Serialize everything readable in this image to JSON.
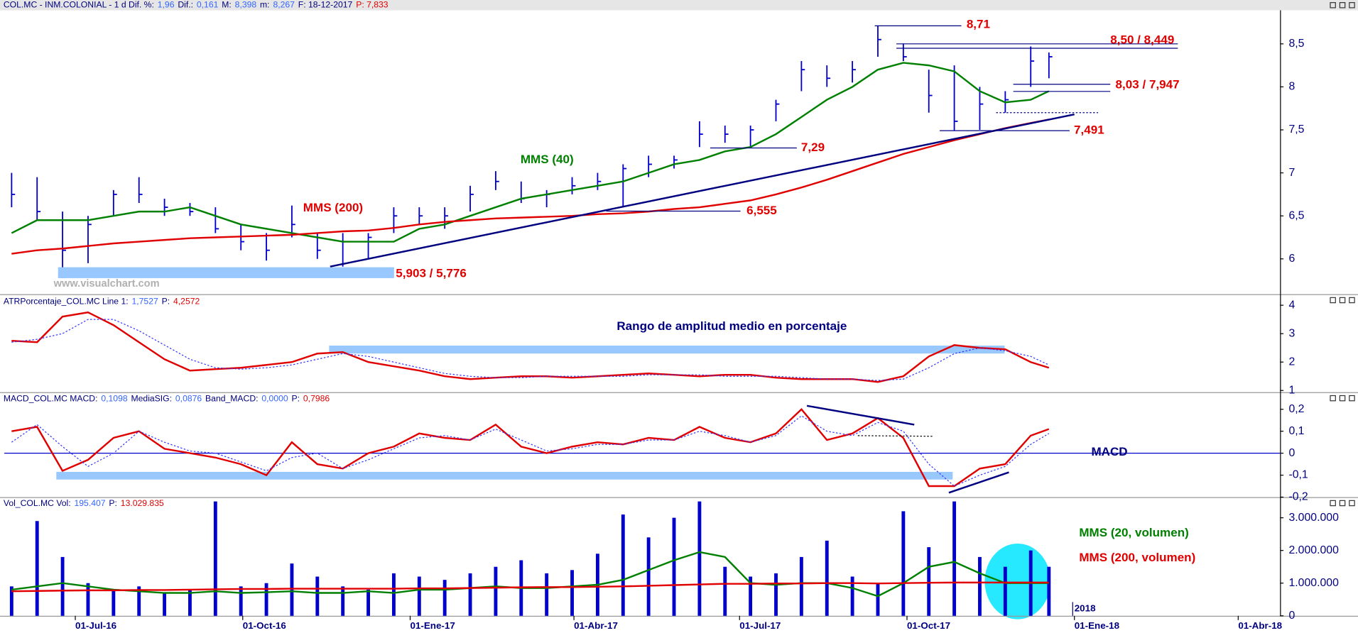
{
  "chart_data": [
    {
      "type": "ohlc",
      "header": [
        {
          "text": "COL.MC - INM.COLONIAL -  1 d  Dif. %:",
          "color": "#000080"
        },
        {
          "text": "1,96",
          "color": "#3366ff"
        },
        {
          "text": "Dif.:",
          "color": "#000080"
        },
        {
          "text": "0,161",
          "color": "#3366ff"
        },
        {
          "text": "M:",
          "color": "#000080"
        },
        {
          "text": "8,398",
          "color": "#3366ff"
        },
        {
          "text": "m:",
          "color": "#000080"
        },
        {
          "text": "8,267",
          "color": "#3366ff"
        },
        {
          "text": "F: 18-12-2017",
          "color": "#000080"
        },
        {
          "text": "P: 7,833",
          "color": "#e00000"
        }
      ],
      "x": [
        "2016-05-27",
        "2016-06-10",
        "2016-06-24",
        "2016-07-08",
        "2016-07-22",
        "2016-08-05",
        "2016-08-19",
        "2016-09-02",
        "2016-09-16",
        "2016-09-30",
        "2016-10-14",
        "2016-10-28",
        "2016-11-11",
        "2016-11-25",
        "2016-12-09",
        "2016-12-23",
        "2017-01-06",
        "2017-01-20",
        "2017-02-03",
        "2017-02-17",
        "2017-03-03",
        "2017-03-17",
        "2017-03-31",
        "2017-04-14",
        "2017-04-28",
        "2017-05-12",
        "2017-05-26",
        "2017-06-09",
        "2017-06-23",
        "2017-07-07",
        "2017-07-21",
        "2017-08-04",
        "2017-08-18",
        "2017-09-01",
        "2017-09-15",
        "2017-09-29",
        "2017-10-13",
        "2017-10-27",
        "2017-11-10",
        "2017-11-24",
        "2017-12-08",
        "2017-12-18"
      ],
      "high": [
        7.0,
        6.95,
        6.55,
        6.5,
        6.8,
        6.95,
        6.7,
        6.65,
        6.6,
        6.4,
        6.3,
        6.62,
        6.3,
        6.3,
        6.3,
        6.6,
        6.6,
        6.6,
        6.85,
        7.02,
        6.9,
        6.8,
        6.95,
        7.0,
        7.1,
        7.2,
        7.2,
        7.6,
        7.55,
        7.55,
        7.85,
        8.3,
        8.25,
        8.3,
        8.71,
        8.5,
        8.2,
        8.25,
        8.0,
        7.95,
        8.47,
        8.4
      ],
      "low": [
        6.6,
        6.45,
        5.776,
        5.95,
        6.5,
        6.65,
        6.5,
        6.5,
        6.3,
        6.1,
        5.98,
        6.25,
        6.0,
        5.91,
        6.0,
        6.3,
        6.4,
        6.35,
        6.55,
        6.8,
        6.65,
        6.6,
        6.75,
        6.8,
        6.6,
        6.95,
        7.05,
        7.3,
        7.35,
        7.29,
        7.6,
        7.95,
        8.0,
        8.05,
        8.35,
        8.3,
        7.7,
        7.491,
        7.5,
        7.7,
        8.0,
        8.1
      ],
      "close": [
        6.75,
        6.55,
        6.1,
        6.4,
        6.75,
        6.75,
        6.6,
        6.55,
        6.35,
        6.2,
        6.1,
        6.4,
        6.1,
        6.2,
        6.25,
        6.5,
        6.5,
        6.5,
        6.75,
        6.9,
        6.7,
        6.75,
        6.85,
        6.9,
        7.05,
        7.1,
        7.15,
        7.45,
        7.45,
        7.5,
        7.8,
        8.2,
        8.1,
        8.2,
        8.55,
        8.35,
        7.9,
        7.6,
        7.8,
        7.85,
        8.3,
        8.35
      ],
      "color": "#0000cc",
      "series": [
        {
          "name": "MMS (40)",
          "color": "#008000",
          "values": [
            6.3,
            6.45,
            6.45,
            6.45,
            6.5,
            6.55,
            6.55,
            6.6,
            6.5,
            6.4,
            6.35,
            6.3,
            6.25,
            6.2,
            6.2,
            6.2,
            6.35,
            6.4,
            6.5,
            6.6,
            6.7,
            6.75,
            6.8,
            6.85,
            6.9,
            7.0,
            7.1,
            7.15,
            7.25,
            7.3,
            7.45,
            7.65,
            7.85,
            8.0,
            8.2,
            8.28,
            8.25,
            8.18,
            7.95,
            7.82,
            7.85,
            7.95
          ]
        },
        {
          "name": "MMS (200)",
          "color": "#e00000",
          "values": [
            6.06,
            6.1,
            6.12,
            6.15,
            6.18,
            6.2,
            6.22,
            6.24,
            6.25,
            6.26,
            6.27,
            6.28,
            6.3,
            6.32,
            6.33,
            6.36,
            6.4,
            6.43,
            6.45,
            6.47,
            6.48,
            6.49,
            6.5,
            6.52,
            6.53,
            6.55,
            6.58,
            6.6,
            6.64,
            6.68,
            6.75,
            6.83,
            6.92,
            7.02,
            7.12,
            7.22,
            7.3,
            7.38,
            7.45,
            7.52,
            7.58,
            7.62
          ]
        }
      ],
      "ylim": [
        5.61,
        8.89
      ],
      "yticks": [
        6,
        {
          "value": 6.5,
          "label": "6,5"
        },
        7,
        {
          "value": 7.5,
          "label": "7,5"
        },
        8,
        {
          "value": 8.5,
          "label": "8,5"
        }
      ],
      "levels": [
        {
          "label": "8,71",
          "values": [
            8.71
          ]
        },
        {
          "label": "8,50 / 8,449",
          "values": [
            8.5,
            8.449
          ]
        },
        {
          "label": "8,03 / 7,947",
          "values": [
            8.03,
            7.947
          ]
        },
        {
          "label": "7,491",
          "values": [
            7.491
          ]
        },
        {
          "label": "7,29",
          "values": [
            7.29
          ]
        },
        {
          "label": "6,555",
          "values": [
            6.555
          ]
        },
        {
          "label": "5,903 / 5,776",
          "values": [
            5.903,
            5.776
          ]
        }
      ],
      "level_color": "#e00000",
      "trendlines": [
        {
          "x": [
            "2016-11-18",
            "2018-01-01"
          ],
          "y": [
            5.91,
            7.68
          ],
          "color": "#000080"
        },
        {
          "x": [
            "2017-11-19",
            "2018-01-14"
          ],
          "y": [
            7.7,
            7.7
          ],
          "color": "#000080",
          "dash": true
        }
      ],
      "watermark": "www.visualchart.com"
    },
    {
      "type": "line",
      "header": [
        {
          "text": "ATRPorcentaje_COL.MC Line 1:",
          "color": "#000080"
        },
        {
          "text": "1,7527",
          "color": "#3366ff"
        },
        {
          "text": "P:",
          "color": "#000080"
        },
        {
          "text": "4,2572",
          "color": "#e00000"
        }
      ],
      "series": [
        {
          "color": "#e00000",
          "values": [
            2.75,
            2.7,
            3.6,
            3.75,
            3.3,
            2.7,
            2.1,
            1.7,
            1.75,
            1.8,
            1.9,
            2.0,
            2.3,
            2.35,
            2.0,
            1.85,
            1.7,
            1.5,
            1.4,
            1.45,
            1.5,
            1.5,
            1.45,
            1.5,
            1.55,
            1.6,
            1.55,
            1.5,
            1.55,
            1.55,
            1.45,
            1.4,
            1.4,
            1.4,
            1.3,
            1.5,
            2.2,
            2.6,
            2.5,
            2.45,
            2.0,
            1.8
          ]
        },
        {
          "color": "#3333ff",
          "dash": true,
          "values": [
            2.7,
            2.8,
            3.0,
            3.5,
            3.5,
            3.1,
            2.6,
            2.1,
            1.8,
            1.75,
            1.8,
            1.9,
            2.1,
            2.3,
            2.2,
            2.0,
            1.8,
            1.6,
            1.5,
            1.45,
            1.45,
            1.5,
            1.5,
            1.5,
            1.5,
            1.55,
            1.55,
            1.55,
            1.5,
            1.5,
            1.5,
            1.45,
            1.4,
            1.4,
            1.35,
            1.4,
            1.8,
            2.3,
            2.5,
            2.4,
            2.2,
            1.9
          ]
        }
      ],
      "ylim": [
        0.97,
        4.3
      ],
      "yticks": [
        1,
        2,
        3,
        4
      ],
      "highlight": [
        2.3,
        2.58
      ],
      "annotation": "Rango de amplitud medio en porcentaje"
    },
    {
      "type": "line",
      "header": [
        {
          "text": "MACD_COL.MC MACD:",
          "color": "#000080"
        },
        {
          "text": "0,1098",
          "color": "#3366ff"
        },
        {
          "text": "MediaSIG:",
          "color": "#000080"
        },
        {
          "text": "0,0876",
          "color": "#3366ff"
        },
        {
          "text": "Band_MACD:",
          "color": "#000080"
        },
        {
          "text": "0,0000",
          "color": "#3366ff"
        },
        {
          "text": "P:",
          "color": "#000080"
        },
        {
          "text": "0,7986",
          "color": "#e00000"
        }
      ],
      "series": [
        {
          "color": "#e00000",
          "values": [
            0.1,
            0.12,
            -0.08,
            -0.03,
            0.07,
            0.1,
            0.02,
            0.0,
            -0.02,
            -0.05,
            -0.1,
            0.05,
            -0.05,
            -0.07,
            0.0,
            0.03,
            0.09,
            0.07,
            0.06,
            0.13,
            0.03,
            0.0,
            0.03,
            0.05,
            0.04,
            0.07,
            0.06,
            0.12,
            0.07,
            0.05,
            0.09,
            0.2,
            0.06,
            0.09,
            0.16,
            0.07,
            -0.15,
            -0.15,
            -0.07,
            -0.05,
            0.08,
            0.11
          ]
        },
        {
          "color": "#3333ff",
          "dash": true,
          "values": [
            0.05,
            0.13,
            0.03,
            -0.06,
            0.0,
            0.1,
            0.05,
            0.01,
            0.0,
            -0.04,
            -0.08,
            -0.02,
            0.0,
            -0.07,
            -0.03,
            0.02,
            0.07,
            0.08,
            0.06,
            0.11,
            0.06,
            0.01,
            0.02,
            0.04,
            0.04,
            0.06,
            0.06,
            0.1,
            0.08,
            0.05,
            0.08,
            0.17,
            0.1,
            0.08,
            0.14,
            0.1,
            -0.05,
            -0.15,
            -0.1,
            -0.06,
            0.04,
            0.09
          ]
        }
      ],
      "ylim": [
        -0.2,
        0.27
      ],
      "yticks": [
        {
          "value": -0.2,
          "label": "-0,2"
        },
        {
          "value": -0.1,
          "label": "-0,1"
        },
        0,
        {
          "value": 0.1,
          "label": "0,1"
        },
        {
          "value": 0.2,
          "label": "0,2"
        }
      ],
      "zero_line": true,
      "highlight": [
        -0.12,
        -0.085
      ],
      "trendlines": [
        {
          "x": [
            "2017-08-07",
            "2017-10-05"
          ],
          "y": [
            0.216,
            0.13
          ],
          "color": "#000080"
        },
        {
          "x": [
            "2017-10-24",
            "2017-11-26"
          ],
          "y": [
            -0.18,
            -0.087
          ],
          "color": "#000080"
        },
        {
          "x": [
            "2017-09-04",
            "2017-10-15"
          ],
          "y": [
            0.08,
            0.077
          ],
          "color": "#000000",
          "dash": true
        }
      ],
      "annotation": "MACD"
    },
    {
      "type": "bar",
      "header": [
        {
          "text": "Vol_COL.MC Vol:",
          "color": "#000080"
        },
        {
          "text": "195.407",
          "color": "#3366ff"
        },
        {
          "text": "P:",
          "color": "#000080"
        },
        {
          "text": "13.029.835",
          "color": "#e00000"
        }
      ],
      "values": [
        900000,
        2900000,
        1800000,
        1000000,
        800000,
        900000,
        700000,
        800000,
        3500000,
        900000,
        1000000,
        1600000,
        1200000,
        900000,
        800000,
        1300000,
        1200000,
        1100000,
        1300000,
        1500000,
        1700000,
        1300000,
        1400000,
        1900000,
        3100000,
        2400000,
        3000000,
        3500000,
        1500000,
        1200000,
        1300000,
        1800000,
        2300000,
        1200000,
        1000000,
        3200000,
        2100000,
        3500000,
        1800000,
        1500000,
        2000000,
        1500000
      ],
      "color": "#0000cc",
      "series": [
        {
          "name": "MMS (20, volumen)",
          "color": "#008000",
          "values": [
            800000,
            900000,
            1000000,
            900000,
            800000,
            750000,
            700000,
            700000,
            750000,
            700000,
            720000,
            750000,
            700000,
            700000,
            750000,
            700000,
            800000,
            800000,
            850000,
            900000,
            850000,
            850000,
            900000,
            950000,
            1100000,
            1400000,
            1700000,
            1950000,
            1800000,
            1000000,
            950000,
            1000000,
            1000000,
            850000,
            600000,
            1000000,
            1500000,
            1650000,
            1300000,
            1000000,
            1000000,
            1000000
          ]
        },
        {
          "name": "MMS (200, volumen)",
          "color": "#e00000",
          "values": [
            750000,
            760000,
            770000,
            780000,
            780000,
            790000,
            790000,
            800000,
            810000,
            820000,
            820000,
            830000,
            830000,
            830000,
            830000,
            830000,
            840000,
            840000,
            850000,
            860000,
            870000,
            880000,
            880000,
            890000,
            900000,
            920000,
            940000,
            960000,
            980000,
            980000,
            990000,
            990000,
            1000000,
            1000000,
            990000,
            1000000,
            1010000,
            1020000,
            1020000,
            1020000,
            1020000,
            1020000
          ]
        }
      ],
      "ylim": [
        0,
        3580000
      ],
      "yticks": [
        0,
        {
          "value": 1000000,
          "label": "1.000.000"
        },
        {
          "value": 2000000,
          "label": "2.000.000"
        },
        {
          "value": 3000000,
          "label": "3.000.000"
        }
      ],
      "xlim": [
        "2016-05-23",
        "2018-04-24"
      ],
      "xticks": [
        {
          "value": "2016-07-01",
          "label": "01-Jul-16"
        },
        {
          "value": "2016-10-01",
          "label": "01-Oct-16"
        },
        {
          "value": "2017-01-01",
          "label": "01-Ene-17"
        },
        {
          "value": "2017-04-01",
          "label": "01-Abr-17"
        },
        {
          "value": "2017-07-01",
          "label": "01-Jul-17"
        },
        {
          "value": "2017-10-01",
          "label": "01-Oct-17"
        },
        {
          "value": "2018-01-01",
          "label": "01-Ene-18"
        },
        {
          "value": "2018-04-01",
          "label": "01-Abr-18"
        }
      ],
      "year_marker": {
        "value": "2018-01-01",
        "label": "2018"
      }
    }
  ]
}
